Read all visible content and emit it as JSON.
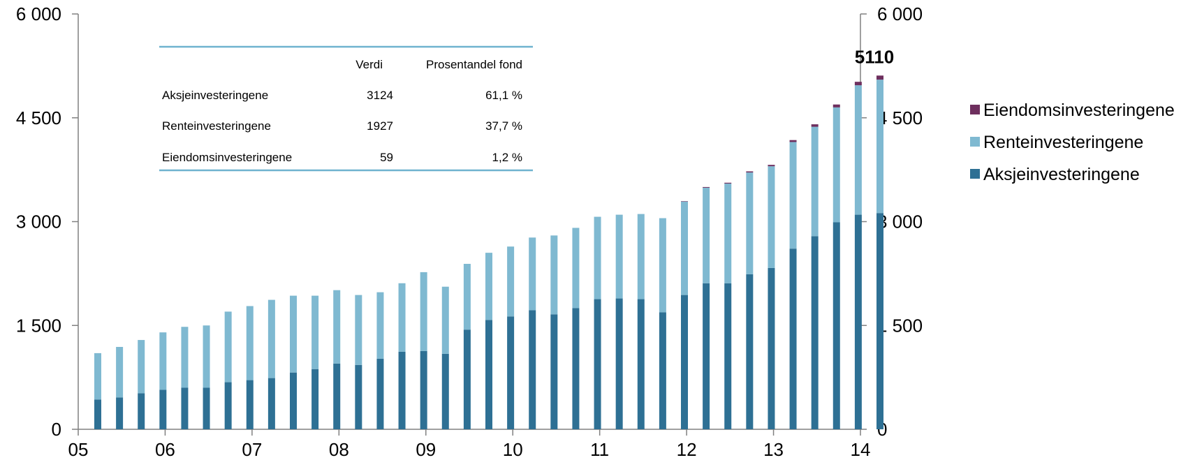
{
  "colors": {
    "aksje": "#2E7094",
    "rente": "#7FB9D1",
    "eiendom": "#6E2F5E",
    "axis": "#808080",
    "table_rule": "#6FB3CF"
  },
  "chart_data": {
    "type": "bar",
    "stacked": true,
    "x_tick_labels": [
      "05",
      "06",
      "07",
      "08",
      "09",
      "10",
      "11",
      "12",
      "13",
      "14"
    ],
    "y_ticks": [
      "0",
      "1 500",
      "3 000",
      "4 500",
      "6 000"
    ],
    "ylim": [
      0,
      6000
    ],
    "grid": false,
    "legend_position": "right",
    "series": [
      {
        "name": "Aksjeinvesteringene",
        "values": [
          430,
          460,
          520,
          570,
          600,
          600,
          680,
          710,
          740,
          820,
          870,
          950,
          930,
          1020,
          1120,
          1130,
          1090,
          1440,
          1580,
          1630,
          1720,
          1660,
          1750,
          1880,
          1890,
          1880,
          1690,
          1940,
          2110,
          2110,
          2240,
          2330,
          2610,
          2790,
          2990,
          3100,
          3124
        ]
      },
      {
        "name": "Renteinvesteringene",
        "values": [
          670,
          730,
          770,
          830,
          880,
          900,
          1020,
          1070,
          1130,
          1110,
          1060,
          1060,
          1010,
          960,
          990,
          1140,
          970,
          950,
          970,
          1010,
          1050,
          1140,
          1160,
          1190,
          1210,
          1230,
          1360,
          1350,
          1380,
          1440,
          1470,
          1470,
          1540,
          1580,
          1660,
          1870,
          1927
        ]
      },
      {
        "name": "Eiendomsinvesteringene",
        "values": [
          0,
          0,
          0,
          0,
          0,
          0,
          0,
          0,
          0,
          0,
          0,
          0,
          0,
          0,
          0,
          0,
          0,
          0,
          0,
          0,
          0,
          0,
          0,
          0,
          0,
          0,
          0,
          6,
          10,
          12,
          16,
          20,
          28,
          36,
          42,
          50,
          59
        ]
      }
    ],
    "annotation": "5110"
  },
  "table": {
    "headers": [
      "",
      "Verdi",
      "Prosentandel fond"
    ],
    "rows": [
      [
        "Aksjeinvesteringene",
        "3124",
        "61,1 %"
      ],
      [
        "Renteinvesteringene",
        "1927",
        "37,7 %"
      ],
      [
        "Eiendomsinvesteringene",
        "59",
        "1,2 %"
      ]
    ]
  },
  "legend": [
    {
      "label": "Eiendomsinvesteringene",
      "color_key": "eiendom"
    },
    {
      "label": "Renteinvesteringene",
      "color_key": "rente"
    },
    {
      "label": "Aksjeinvesteringene",
      "color_key": "aksje"
    }
  ]
}
